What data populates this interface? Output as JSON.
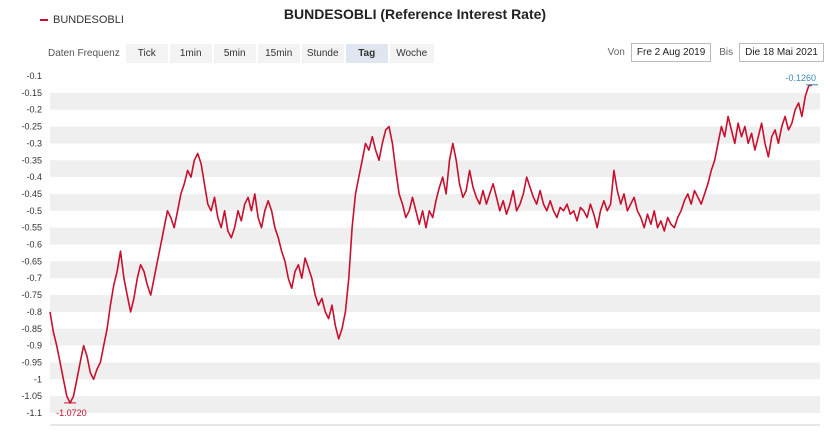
{
  "title": "BUNDESOBLI (Reference Interest Rate)",
  "legend": {
    "label": "BUNDESOBLI",
    "color": "#c8102e"
  },
  "toolbar": {
    "label": "Daten Frequenz",
    "buttons": [
      {
        "label": "Tick",
        "active": false
      },
      {
        "label": "1min",
        "active": false
      },
      {
        "label": "5min",
        "active": false
      },
      {
        "label": "15min",
        "active": false
      },
      {
        "label": "Stunde",
        "active": false
      },
      {
        "label": "Tag",
        "active": true
      },
      {
        "label": "Woche",
        "active": false
      }
    ]
  },
  "daterange": {
    "from_label": "Von",
    "from_value": "Fre 2 Aug 2019",
    "to_label": "Bis",
    "to_value": "Die 18 Mai 2021"
  },
  "chart_data": {
    "type": "line",
    "title": "BUNDESOBLI (Reference Interest Rate)",
    "series": [
      {
        "name": "BUNDESOBLI",
        "color": "#c8102e",
        "values": [
          -0.8,
          -0.86,
          -0.9,
          -0.95,
          -1.0,
          -1.05,
          -1.07,
          -1.05,
          -1.0,
          -0.95,
          -0.9,
          -0.93,
          -0.98,
          -1.0,
          -0.97,
          -0.95,
          -0.9,
          -0.85,
          -0.78,
          -0.72,
          -0.68,
          -0.62,
          -0.7,
          -0.75,
          -0.8,
          -0.76,
          -0.7,
          -0.66,
          -0.68,
          -0.72,
          -0.75,
          -0.7,
          -0.65,
          -0.6,
          -0.55,
          -0.5,
          -0.52,
          -0.55,
          -0.5,
          -0.45,
          -0.42,
          -0.38,
          -0.4,
          -0.35,
          -0.33,
          -0.36,
          -0.42,
          -0.48,
          -0.5,
          -0.46,
          -0.52,
          -0.55,
          -0.5,
          -0.56,
          -0.58,
          -0.55,
          -0.5,
          -0.53,
          -0.48,
          -0.46,
          -0.5,
          -0.45,
          -0.52,
          -0.55,
          -0.5,
          -0.47,
          -0.5,
          -0.55,
          -0.58,
          -0.62,
          -0.65,
          -0.7,
          -0.73,
          -0.68,
          -0.66,
          -0.7,
          -0.64,
          -0.67,
          -0.7,
          -0.75,
          -0.78,
          -0.76,
          -0.8,
          -0.82,
          -0.78,
          -0.84,
          -0.88,
          -0.85,
          -0.8,
          -0.7,
          -0.55,
          -0.45,
          -0.4,
          -0.35,
          -0.3,
          -0.32,
          -0.28,
          -0.32,
          -0.35,
          -0.3,
          -0.26,
          -0.25,
          -0.3,
          -0.38,
          -0.45,
          -0.48,
          -0.52,
          -0.5,
          -0.46,
          -0.5,
          -0.54,
          -0.5,
          -0.55,
          -0.5,
          -0.52,
          -0.47,
          -0.43,
          -0.4,
          -0.45,
          -0.35,
          -0.3,
          -0.35,
          -0.42,
          -0.46,
          -0.44,
          -0.38,
          -0.43,
          -0.46,
          -0.48,
          -0.44,
          -0.48,
          -0.45,
          -0.42,
          -0.46,
          -0.5,
          -0.47,
          -0.51,
          -0.48,
          -0.44,
          -0.5,
          -0.48,
          -0.45,
          -0.4,
          -0.43,
          -0.46,
          -0.48,
          -0.44,
          -0.48,
          -0.5,
          -0.47,
          -0.5,
          -0.52,
          -0.49,
          -0.5,
          -0.48,
          -0.51,
          -0.5,
          -0.53,
          -0.49,
          -0.5,
          -0.52,
          -0.48,
          -0.51,
          -0.55,
          -0.5,
          -0.47,
          -0.5,
          -0.48,
          -0.38,
          -0.44,
          -0.48,
          -0.45,
          -0.5,
          -0.48,
          -0.46,
          -0.5,
          -0.52,
          -0.55,
          -0.51,
          -0.54,
          -0.5,
          -0.55,
          -0.53,
          -0.56,
          -0.52,
          -0.54,
          -0.55,
          -0.52,
          -0.5,
          -0.47,
          -0.45,
          -0.48,
          -0.44,
          -0.46,
          -0.48,
          -0.45,
          -0.42,
          -0.38,
          -0.35,
          -0.3,
          -0.25,
          -0.28,
          -0.22,
          -0.26,
          -0.3,
          -0.24,
          -0.28,
          -0.25,
          -0.3,
          -0.27,
          -0.32,
          -0.28,
          -0.24,
          -0.3,
          -0.34,
          -0.28,
          -0.26,
          -0.3,
          -0.25,
          -0.22,
          -0.26,
          -0.24,
          -0.2,
          -0.18,
          -0.22,
          -0.16,
          -0.13,
          -0.126
        ]
      }
    ],
    "ylim": [
      -1.1,
      -0.1
    ],
    "yticks": [
      -0.1,
      -0.15,
      -0.2,
      -0.25,
      -0.3,
      -0.35,
      -0.4,
      -0.45,
      -0.5,
      -0.55,
      -0.6,
      -0.65,
      -0.7,
      -0.75,
      -0.8,
      -0.85,
      -0.9,
      -0.95,
      -1,
      -1.05,
      -1.1
    ],
    "ytick_labels": [
      "-0.1",
      "-0.15",
      "-0.2",
      "-0.25",
      "-0.3",
      "-0.35",
      "-0.4",
      "-0.45",
      "-0.5",
      "-0.55",
      "-0.6",
      "-0.65",
      "-0.7",
      "-0.75",
      "-0.8",
      "-0.85",
      "-0.9",
      "-0.95",
      "-1",
      "-1.05",
      "-1.1"
    ],
    "grid": "alternating horizontal bands",
    "annotations": [
      {
        "label": "-0.1260",
        "type": "max",
        "color": "#3a8ab5"
      },
      {
        "label": "-1.0720",
        "type": "min",
        "color": "#c8102e"
      }
    ]
  }
}
